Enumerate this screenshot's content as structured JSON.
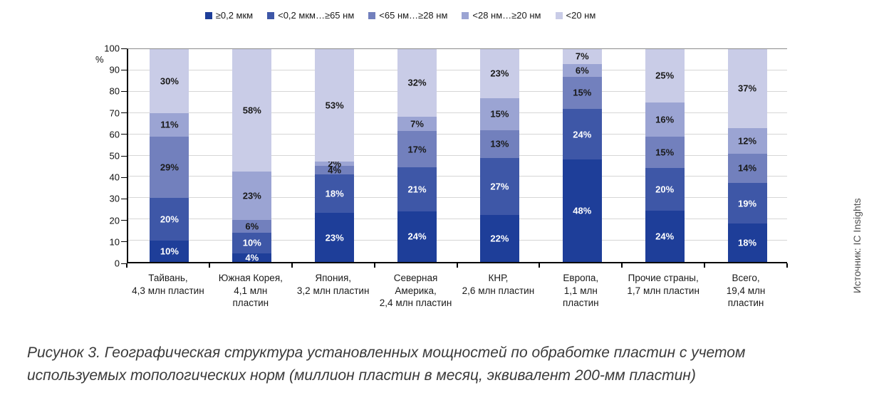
{
  "chart_data": {
    "type": "bar",
    "stacked": true,
    "orientation": "vertical",
    "ylabel": "%",
    "ylim": [
      0,
      100
    ],
    "ytick_step": 10,
    "grid": true,
    "legend_position": "top",
    "categories": [
      "Тайвань,\n4,3 млн пластин",
      "Южная Корея,\n4,1 млн\nпластин",
      "Япония,\n3,2 млн пластин",
      "Северная\nАмерика,\n2,4 млн пластин",
      "КНР,\n2,6 млн пластин",
      "Европа,\n1,1 млн\nпластин",
      "Прочие страны,\n1,7 млн пластин",
      "Всего,\n19,4 млн\nпластин"
    ],
    "series": [
      {
        "name": "≥0,2 мкм",
        "color": "#1e3e99",
        "label_color": "#ffffff",
        "values": [
          10,
          4,
          23,
          24,
          22,
          48,
          24,
          18
        ]
      },
      {
        "name": "<0,2 мкм…≥65 нм",
        "color": "#3e57a7",
        "label_color": "#ffffff",
        "values": [
          20,
          10,
          18,
          21,
          27,
          24,
          20,
          19
        ]
      },
      {
        "name": "<65 нм…≥28 нм",
        "color": "#7280bd",
        "label_color": "#1a1a1a",
        "values": [
          29,
          6,
          4,
          17,
          13,
          15,
          15,
          14
        ]
      },
      {
        "name": "<28 нм…≥20 нм",
        "color": "#9ba4d3",
        "label_color": "#1a1a1a",
        "values": [
          11,
          23,
          2,
          7,
          15,
          6,
          16,
          12
        ]
      },
      {
        "name": "<20 нм",
        "color": "#c9cce7",
        "label_color": "#1a1a1a",
        "values": [
          30,
          58,
          53,
          32,
          23,
          7,
          25,
          37
        ]
      }
    ],
    "value_suffix": "%"
  },
  "axis": {
    "y_unit_label": "%",
    "y_ticks": [
      0,
      10,
      20,
      30,
      40,
      50,
      60,
      70,
      80,
      90,
      100
    ]
  },
  "source_note": "Источник: IC Insights",
  "caption": "Рисунок 3. Географическая структура установленных мощностей по обработке пластин с учетом\nиспользуемых топологических норм (миллион пластин в месяц, эквивалент 200-мм пластин)"
}
